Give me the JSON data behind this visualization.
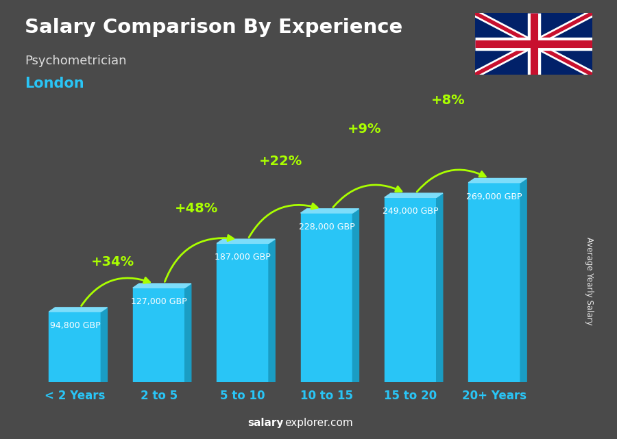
{
  "title": "Salary Comparison By Experience",
  "subtitle": "Psychometrician",
  "city": "London",
  "categories": [
    "< 2 Years",
    "2 to 5",
    "5 to 10",
    "10 to 15",
    "15 to 20",
    "20+ Years"
  ],
  "values": [
    94800,
    127000,
    187000,
    228000,
    249000,
    269000
  ],
  "labels": [
    "94,800 GBP",
    "127,000 GBP",
    "187,000 GBP",
    "228,000 GBP",
    "249,000 GBP",
    "269,000 GBP"
  ],
  "pct_increases": [
    "+34%",
    "+48%",
    "+22%",
    "+9%",
    "+8%"
  ],
  "bar_color_face": "#29C5F6",
  "bar_color_light": "#7DDDFA",
  "bar_color_dark": "#1A9DC4",
  "bg_color": "#4a4a4a",
  "title_color": "#ffffff",
  "subtitle_color": "#dddddd",
  "city_color": "#29C5F6",
  "label_color": "#ffffff",
  "pct_color": "#aaff00",
  "xticklabel_color": "#29C5F6",
  "watermark_salary": "salary",
  "watermark_rest": "explorer.com",
  "ylabel_text": "Average Yearly Salary",
  "ylim": [
    0,
    320000
  ],
  "bar_width": 0.62,
  "depth_ratio": 0.12
}
